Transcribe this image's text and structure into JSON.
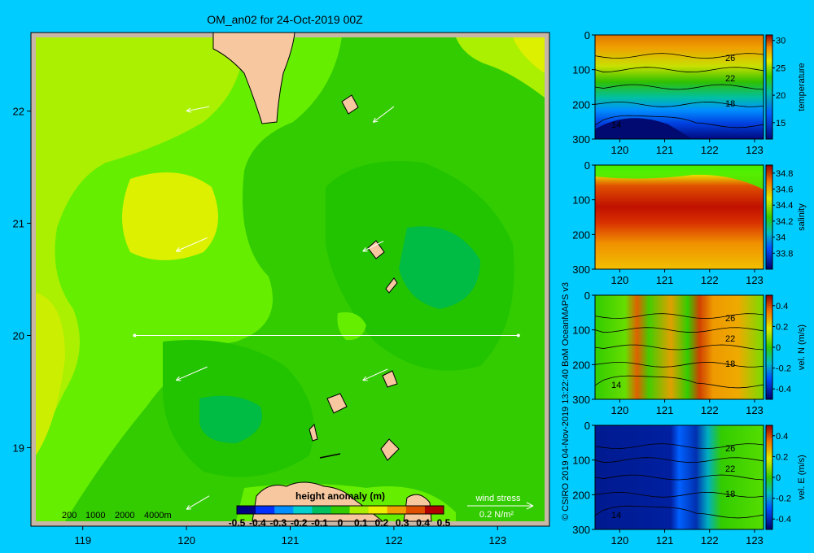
{
  "page": {
    "title": "OM_an02 for 24-Oct-2019 00Z",
    "credit": "© CSIRO 2019   04-Nov-2019 13:22:40 BoM OceanMAPS v3",
    "colors": {
      "background": "#00ccff",
      "land": "#f7c7a0",
      "land_border": "#c8b6a6"
    }
  },
  "chart_data": [
    {
      "type": "heatmap",
      "name": "map",
      "xlim": [
        118.5,
        123.5
      ],
      "ylim": [
        18.3,
        22.7
      ],
      "x_ticks": [
        "119",
        "120",
        "121",
        "122",
        "123"
      ],
      "y_ticks": [
        "19",
        "20",
        "21",
        "22"
      ],
      "section_line": {
        "lat": 20.0,
        "lon_start": 119.5,
        "lon_end": 123.2
      },
      "depth_legend": [
        "200",
        "1000",
        "2000",
        "4000m"
      ],
      "colorbar": {
        "label": "height anomaly (m)",
        "ticks": [
          "-0.5",
          "-0.4",
          "-0.3",
          "-0.2",
          "-0.1",
          "0",
          "0.1",
          "0.2",
          "0.3",
          "0.4",
          "0.5"
        ],
        "range": [
          -0.5,
          0.5
        ]
      },
      "wind_stress": {
        "label": "wind stress",
        "scale": "0.2 N/m²"
      },
      "wind_vectors": [
        {
          "lon": 120.0,
          "lat": 22.0,
          "dlon": 0.22,
          "dlat": 0.04
        },
        {
          "lon": 121.8,
          "lat": 21.9,
          "dlon": 0.2,
          "dlat": 0.14
        },
        {
          "lon": 119.9,
          "lat": 20.75,
          "dlon": 0.3,
          "dlat": 0.12
        },
        {
          "lon": 121.7,
          "lat": 20.75,
          "dlon": 0.2,
          "dlat": 0.09
        },
        {
          "lon": 119.9,
          "lat": 19.6,
          "dlon": 0.3,
          "dlat": 0.12
        },
        {
          "lon": 121.7,
          "lat": 19.6,
          "dlon": 0.24,
          "dlat": 0.1
        },
        {
          "lon": 120.0,
          "lat": 18.45,
          "dlon": 0.22,
          "dlat": 0.12
        }
      ]
    },
    {
      "type": "heatmap",
      "name": "temperature-section",
      "variable": "temperature",
      "x_ticks": [
        "120",
        "121",
        "122",
        "123"
      ],
      "y_ticks": [
        "0",
        "100",
        "200",
        "300"
      ],
      "ylim": [
        0,
        300
      ],
      "contour_labels": [
        "26",
        "22",
        "18",
        "14"
      ],
      "colorbar": {
        "ticks": [
          "30",
          "25",
          "20",
          "15"
        ],
        "range": [
          12,
          31
        ]
      }
    },
    {
      "type": "heatmap",
      "name": "salinity-section",
      "variable": "salinity",
      "x_ticks": [
        "120",
        "121",
        "122",
        "123"
      ],
      "y_ticks": [
        "0",
        "100",
        "200",
        "300"
      ],
      "ylim": [
        0,
        300
      ],
      "contour_labels": [],
      "colorbar": {
        "ticks": [
          "34.8",
          "34.6",
          "34.4",
          "34.2",
          "34",
          "33.8"
        ],
        "range": [
          33.6,
          34.9
        ]
      }
    },
    {
      "type": "heatmap",
      "name": "vel-n-section",
      "variable": "vel. N (m/s)",
      "x_ticks": [
        "120",
        "121",
        "122",
        "123"
      ],
      "y_ticks": [
        "0",
        "100",
        "200",
        "300"
      ],
      "ylim": [
        0,
        300
      ],
      "contour_labels": [
        "26",
        "22",
        "18",
        "14"
      ],
      "colorbar": {
        "ticks": [
          "0.4",
          "0.2",
          "0",
          "-0.2",
          "-0.4"
        ],
        "range": [
          -0.5,
          0.5
        ]
      }
    },
    {
      "type": "heatmap",
      "name": "vel-e-section",
      "variable": "vel. E (m/s)",
      "x_ticks": [
        "120",
        "121",
        "122",
        "123"
      ],
      "y_ticks": [
        "0",
        "100",
        "200",
        "300"
      ],
      "ylim": [
        0,
        300
      ],
      "contour_labels": [
        "26",
        "22",
        "18",
        "14"
      ],
      "colorbar": {
        "ticks": [
          "0.4",
          "0.2",
          "0",
          "-0.2",
          "-0.4"
        ],
        "range": [
          -0.5,
          0.5
        ]
      }
    }
  ]
}
